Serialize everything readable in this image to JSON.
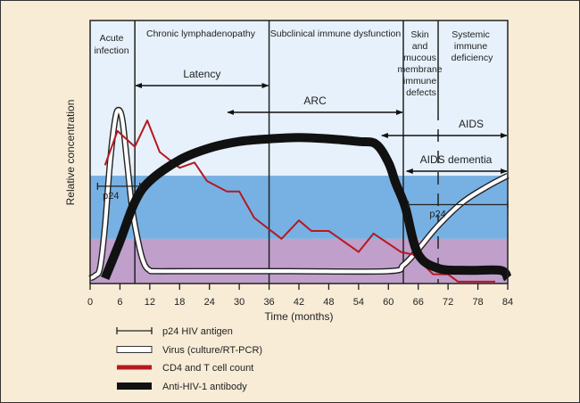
{
  "phases": {
    "acute": [
      "Acute",
      "infection"
    ],
    "chronic": "Chronic lymphadenopathy",
    "subclinical": "Subclinical immune dysfunction",
    "skin": [
      "Skin",
      "and",
      "mucous",
      "membrane",
      "immune",
      "defects"
    ],
    "systemic": [
      "Systemic",
      "immune",
      "deficiency"
    ]
  },
  "arrows": [
    {
      "label": "Latency",
      "from": 9,
      "to": 36
    },
    {
      "label": "ARC",
      "from": 27.5,
      "to": 63
    },
    {
      "label": "AIDS",
      "from": 58.5,
      "to": 84
    },
    {
      "label": "AIDS dementia",
      "from": 63.5,
      "to": 84
    }
  ],
  "legend": [
    {
      "label": "p24 HIV antigen",
      "icon": "p24-bar-icon"
    },
    {
      "label": "Virus (culture/RT-PCR)",
      "icon": "virus-line-icon"
    },
    {
      "label": "CD4 and T cell count",
      "icon": "cd4-line-icon"
    },
    {
      "label": "Anti-HIV-1 antibody",
      "icon": "antibody-line-icon"
    }
  ],
  "colors": {
    "background": "#f8ecd6",
    "band_top": "#e6f1fb",
    "band_mid": "#77b1e4",
    "band_low": "#c09fcb",
    "cd4": "#b5191f",
    "antibody": "#111111"
  },
  "chart_data": {
    "type": "line",
    "title": "",
    "xlabel": "Time (months)",
    "ylabel": "Relative concentration",
    "xlim": [
      0,
      84
    ],
    "ylim": [
      0,
      100
    ],
    "xticks": [
      0,
      6,
      12,
      18,
      24,
      30,
      36,
      42,
      48,
      54,
      60,
      66,
      72,
      78,
      84
    ],
    "phase_boundaries": [
      9,
      36,
      63,
      70
    ],
    "series": [
      {
        "name": "Virus (culture/RT-PCR)",
        "x": [
          0,
          1,
          2,
          3,
          4,
          5,
          5.7,
          6.5,
          7.5,
          8.5,
          10,
          11,
          12,
          13,
          20,
          40,
          60,
          63,
          66,
          70,
          75,
          80,
          84
        ],
        "y": [
          2,
          3,
          6,
          22,
          46,
          62,
          66,
          62,
          45,
          28,
          13,
          7,
          5,
          4.7,
          4.7,
          4.7,
          4.7,
          7,
          13,
          22,
          31,
          37,
          41
        ]
      },
      {
        "name": "CD4 and T cell count",
        "x": [
          3,
          5.5,
          9,
          11.5,
          14,
          18,
          21,
          23.5,
          27.5,
          30,
          33,
          38.5,
          42,
          44.5,
          48,
          54,
          57,
          62.5,
          65,
          69,
          72,
          74,
          81.5
        ],
        "y": [
          45,
          58,
          52,
          62,
          50,
          44,
          46,
          39,
          35,
          35,
          25,
          17,
          24,
          20,
          20,
          12,
          19,
          12,
          11,
          3.5,
          3.5,
          0.7,
          0.7
        ]
      },
      {
        "name": "Anti-HIV-1 antibody",
        "x": [
          3,
          6,
          9,
          12,
          18,
          24,
          30,
          36,
          42,
          48,
          54,
          57.5,
          60,
          61.5,
          63.4,
          65.9,
          70,
          76,
          82.6,
          84
        ],
        "y": [
          2,
          16,
          31,
          39,
          47,
          51.5,
          54,
          55,
          55.5,
          55,
          54,
          53,
          46,
          38,
          29,
          11.5,
          5.8,
          5,
          5,
          2
        ]
      }
    ],
    "intervals": [
      {
        "name": "p24 HIV antigen",
        "label": "p24",
        "from": 1.5,
        "to": 10,
        "level": 37
      },
      {
        "name": "p24 HIV antigen",
        "label": "p24",
        "from": 64,
        "to": 84,
        "level": 30
      }
    ],
    "bands": [
      {
        "from": 0,
        "to": 17,
        "name": "low"
      },
      {
        "from": 17,
        "to": 41,
        "name": "mid"
      },
      {
        "from": 41,
        "to": 100,
        "name": "top"
      }
    ]
  }
}
